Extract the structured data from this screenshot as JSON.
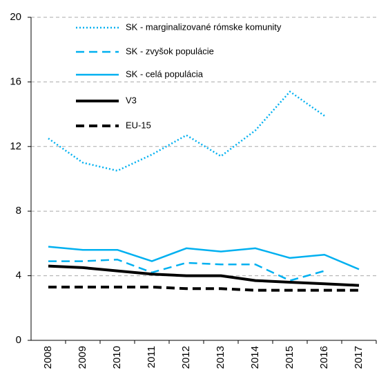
{
  "chart_data": {
    "type": "line",
    "categories": [
      "2008",
      "2009",
      "2010",
      "2011",
      "2012",
      "2013",
      "2014",
      "2015",
      "2016",
      "2017"
    ],
    "series": [
      {
        "name": "SK - marginalizované rómske komunity",
        "color": "#00b0f0",
        "dash": "dotted",
        "values": [
          12.5,
          11.0,
          10.5,
          11.5,
          12.7,
          11.4,
          13.0,
          15.4,
          13.9,
          null
        ]
      },
      {
        "name": "SK - zvyšok populácie",
        "color": "#00b0f0",
        "dash": "dashed",
        "values": [
          4.9,
          4.9,
          5.0,
          4.2,
          4.8,
          4.7,
          4.7,
          3.7,
          4.3,
          null
        ]
      },
      {
        "name": "SK - celá populácia",
        "color": "#00b0f0",
        "dash": "solid",
        "values": [
          5.8,
          5.6,
          5.6,
          4.9,
          5.7,
          5.5,
          5.7,
          5.1,
          5.3,
          4.4
        ]
      },
      {
        "name": "V3",
        "color": "#000000",
        "dash": "solid",
        "values": [
          4.6,
          4.5,
          4.3,
          4.1,
          4.0,
          4.0,
          3.7,
          3.6,
          3.5,
          3.4
        ]
      },
      {
        "name": "EU-15",
        "color": "#000000",
        "dash": "dashed",
        "values": [
          3.3,
          3.3,
          3.3,
          3.3,
          3.2,
          3.2,
          3.1,
          3.1,
          3.1,
          3.1
        ]
      }
    ],
    "ylim": [
      0,
      20
    ],
    "yticks": [
      0,
      4,
      8,
      12,
      16,
      20
    ],
    "grid": true,
    "legend": "top-left"
  }
}
